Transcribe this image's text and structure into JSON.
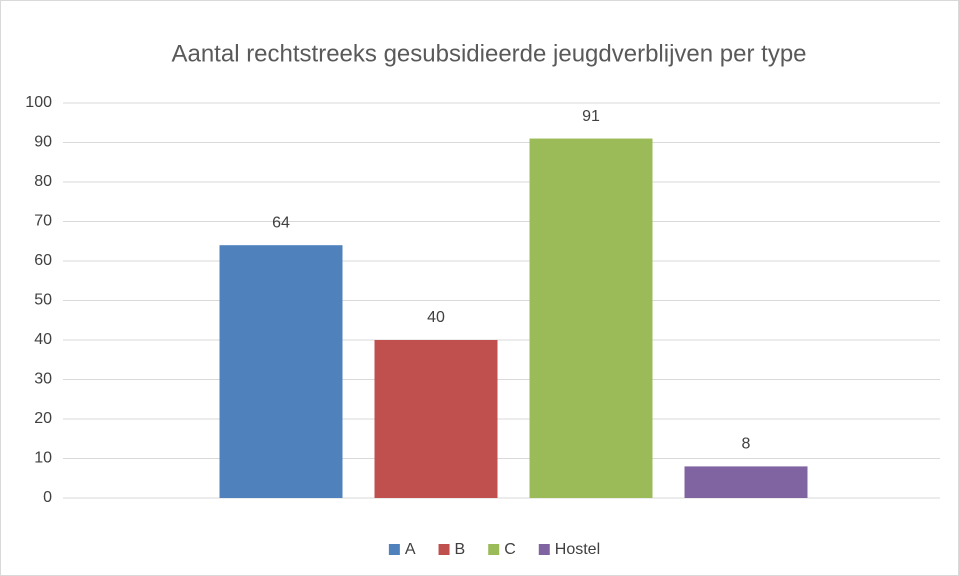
{
  "chart_data": {
    "type": "bar",
    "title": "Aantal rechtstreeks gesubsidieerde jeugdverblijven per type",
    "categories": [
      null
    ],
    "series": [
      {
        "name": "A",
        "color": "#4f81bd",
        "values": [
          64
        ]
      },
      {
        "name": "B",
        "color": "#c0504d",
        "values": [
          40
        ]
      },
      {
        "name": "C",
        "color": "#9bbb59",
        "values": [
          91
        ]
      },
      {
        "name": "Hostel",
        "color": "#8064a2",
        "values": [
          8
        ]
      }
    ],
    "ylim": [
      0,
      100
    ],
    "yticks": [
      0,
      10,
      20,
      30,
      40,
      50,
      60,
      70,
      80,
      90,
      100
    ],
    "grid": true,
    "legend": "bottom"
  }
}
